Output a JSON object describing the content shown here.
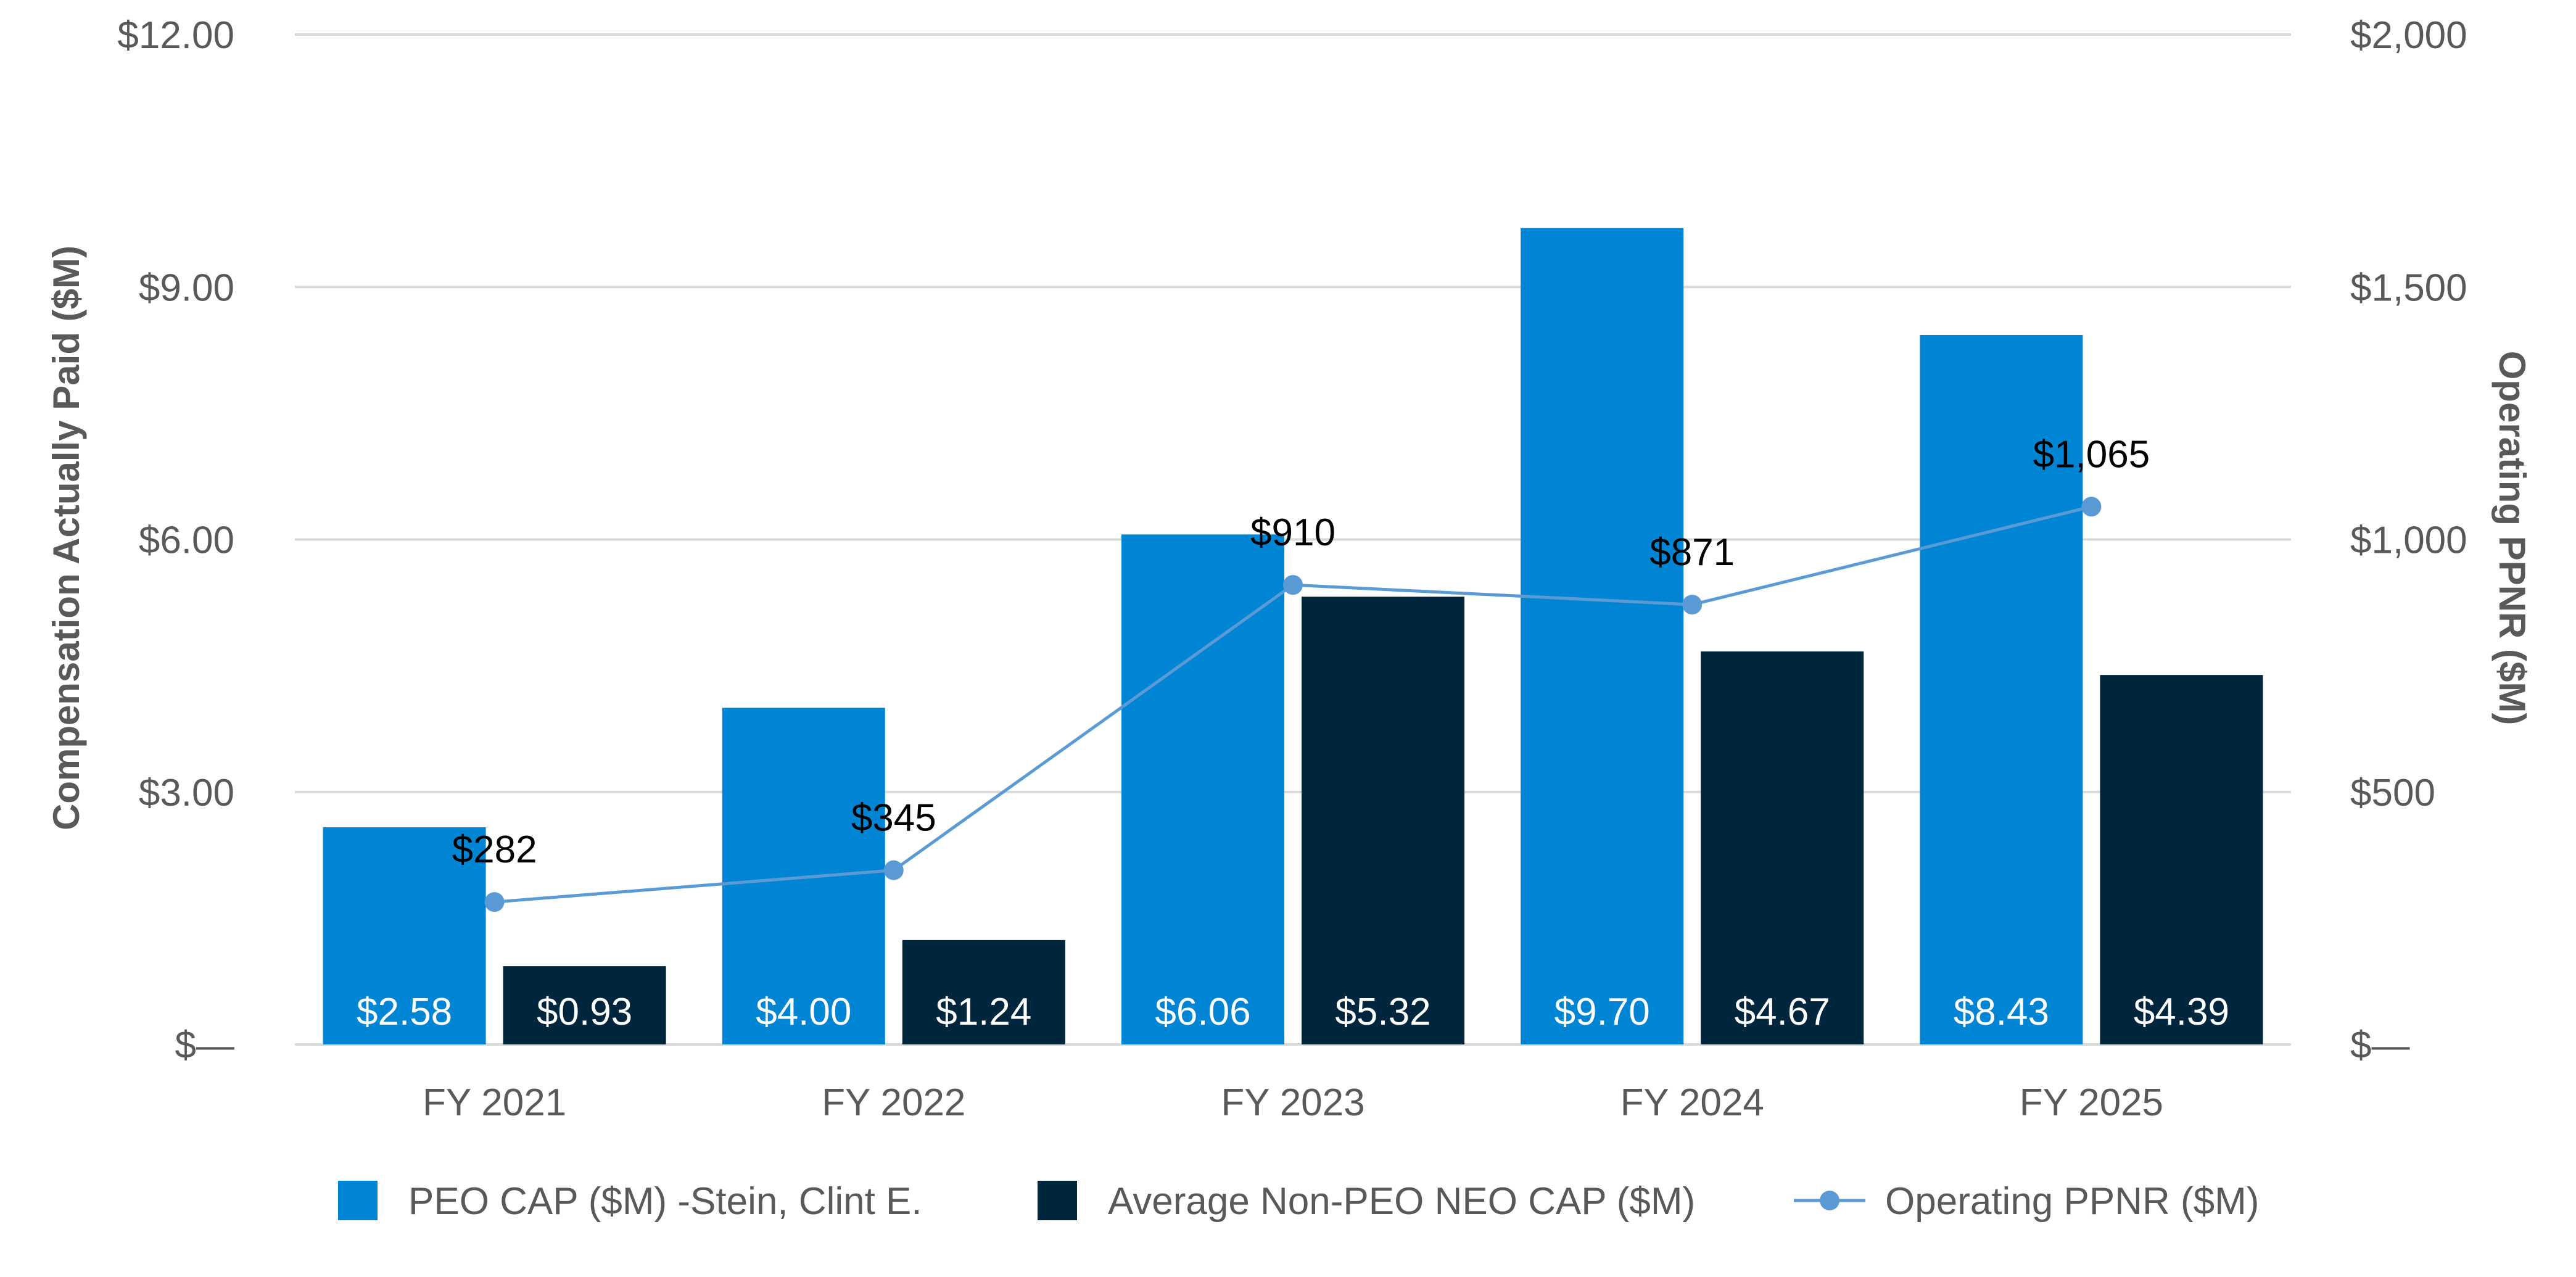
{
  "chart_data": {
    "type": "bar",
    "title": "",
    "categories": [
      "FY 2021",
      "FY 2022",
      "FY 2023",
      "FY 2024",
      "FY 2025"
    ],
    "series": [
      {
        "name": "PEO CAP ($M) -Stein, Clint E.",
        "kind": "bar",
        "axis": "left",
        "color": "#0085D5",
        "values": [
          2.58,
          4.0,
          6.06,
          9.7,
          8.43
        ],
        "labels": [
          "$2.58",
          "$4.00",
          "$6.06",
          "$9.70",
          "$8.43"
        ]
      },
      {
        "name": "Average Non-PEO NEO CAP ($M)",
        "kind": "bar",
        "axis": "left",
        "color": "#00263E",
        "values": [
          0.93,
          1.24,
          5.32,
          4.67,
          4.39
        ],
        "labels": [
          "$0.93",
          "$1.24",
          "$5.32",
          "$4.67",
          "$4.39"
        ]
      },
      {
        "name": "Operating PPNR ($M)",
        "kind": "line",
        "axis": "right",
        "color": "#5B9BD5",
        "values": [
          282,
          345,
          910,
          871,
          1065
        ],
        "labels": [
          "$282",
          "$345",
          "$910",
          "$871",
          "$1,065"
        ]
      }
    ],
    "y_left": {
      "label": "Compensation Actually Paid ($M)",
      "lim": [
        0,
        12
      ],
      "ticks": [
        0,
        3,
        6,
        9,
        12
      ],
      "tick_labels": [
        "$—",
        "$3.00",
        "$6.00",
        "$9.00",
        "$12.00"
      ]
    },
    "y_right": {
      "label": "Operating PPNR ($M)",
      "lim": [
        0,
        2000
      ],
      "ticks": [
        0,
        500,
        1000,
        1500,
        2000
      ],
      "tick_labels": [
        "$—",
        "$500",
        "$1,000",
        "$1,500",
        "$2,000"
      ]
    },
    "grid": true,
    "legend": "bottom"
  },
  "colors": {
    "grid": "#D9D9D9",
    "text": "#595959"
  }
}
